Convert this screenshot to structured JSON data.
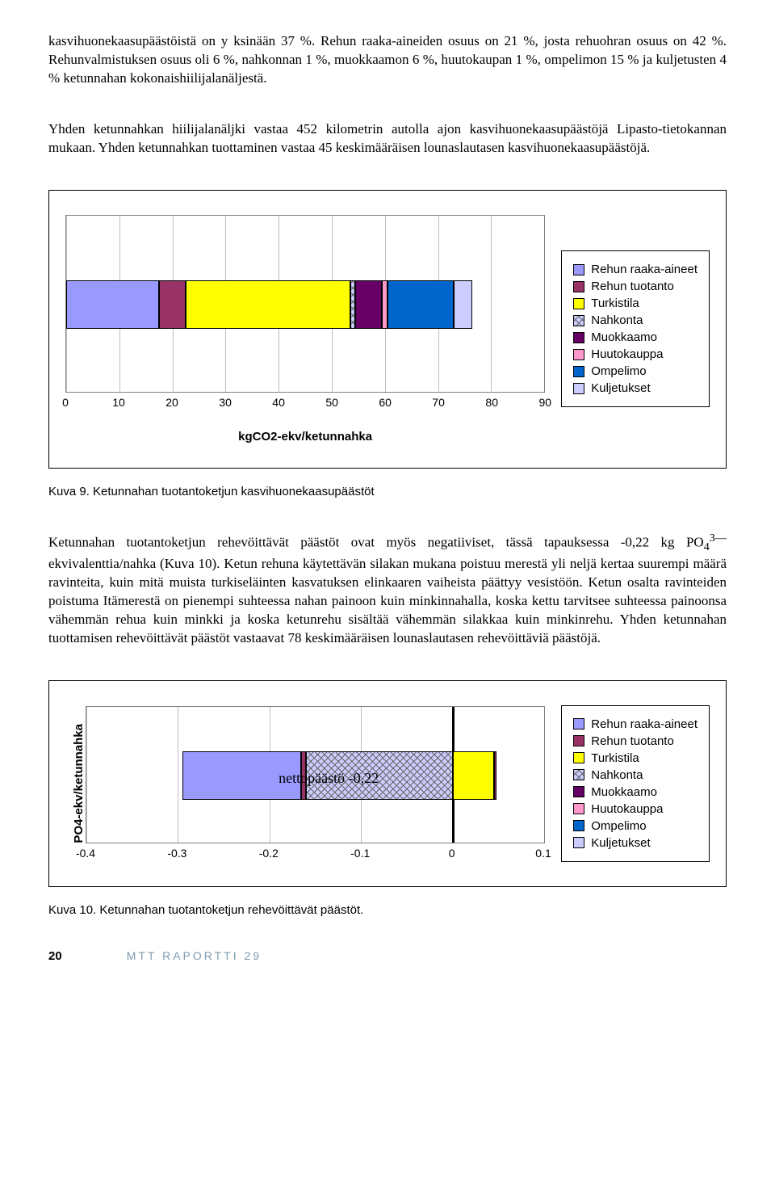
{
  "paragraphs": {
    "p1": "kasvihuonekaasupäästöistä on y ksinään 37 %. Rehun raaka-aineiden osuus on 21 %, josta rehuohran osuus on 42 %. Rehunvalmistuksen osuus oli 6 %, nahkonnan 1 %, muokkaamon 6 %, huutokaupan 1 %, ompelimon 15 % ja kuljetusten 4 % ketunnahan kokonaishiilijalanäljestä.",
    "p2": "Yhden ketunnahkan hiilijalanäljki vastaa 452 kilometrin autolla ajon kasvihuonekaasupäästöjä Lipasto-tietokannan mukaan. Yhden ketunnahkan tuottaminen vastaa 45 keskimääräisen lounaslautasen kasvihuonekaasupäästöjä.",
    "p3a": "Ketunnahan tuotantoketjun rehevöittävät päästöt ovat myös negatiiviset, tässä tapauksessa -0,22 kg PO",
    "p3b": " ekvivalenttia/nahka (Kuva 10). Ketun rehuna käytettävän silakan mukana poistuu merestä yli neljä kertaa suurempi määrä ravinteita, kuin mitä muista turkiseläinten kasvatuksen elinkaaren vaiheista päättyy vesistöön. Ketun osalta ravinteiden poistuma Itämerestä on pienempi suhteessa nahan painoon kuin minkinnahalla, koska kettu tarvitsee suhteessa painoonsa vähemmän rehua kuin minkki ja koska ketunrehu sisältää vähemmän silakkaa kuin minkinrehu. Yhden ketunnahan tuottamisen rehevöittävät päästöt vastaavat 78 keskimääräisen lounaslautasen rehevöittäviä päästöjä.",
    "sub4": "4",
    "sup3": "3—"
  },
  "legend": {
    "items": [
      {
        "label": "Rehun raaka-aineet",
        "color": "#9999ff"
      },
      {
        "label": "Rehun tuotanto",
        "color": "#993366"
      },
      {
        "label": "Turkistila",
        "color": "#ffff00"
      },
      {
        "label": "Nahkonta",
        "color": "#ccccff",
        "hatch": true
      },
      {
        "label": "Muokkaamo",
        "color": "#660066"
      },
      {
        "label": "Huutokauppa",
        "color": "#ff99cc"
      },
      {
        "label": "Ompelimo",
        "color": "#0066cc"
      },
      {
        "label": "Kuljetukset",
        "color": "#ccccff"
      }
    ]
  },
  "chart1": {
    "type": "stacked-bar-horizontal",
    "x_title": "kgCO2-ekv/ketunnahka",
    "xlim": [
      0,
      90
    ],
    "ticks": [
      0,
      10,
      20,
      30,
      40,
      50,
      60,
      70,
      80,
      90
    ],
    "segments": [
      {
        "value": 17.5,
        "color": "#9999ff"
      },
      {
        "value": 5,
        "color": "#993366"
      },
      {
        "value": 31,
        "color": "#ffff00"
      },
      {
        "value": 1,
        "color": "#ccccff",
        "hatch": true
      },
      {
        "value": 5,
        "color": "#660066"
      },
      {
        "value": 1,
        "color": "#ff99cc"
      },
      {
        "value": 12.5,
        "color": "#0066cc"
      },
      {
        "value": 3.5,
        "color": "#ccccff"
      }
    ],
    "background": "#ffffff",
    "grid_color": "#808080"
  },
  "caption1": "Kuva 9. Ketunnahan tuotantoketjun kasvihuonekaasupäästöt",
  "chart2": {
    "type": "stacked-bar-horizontal",
    "y_title": "PO4-ekv/ketunnahka",
    "xlim": [
      -0.4,
      0.1
    ],
    "ticks": [
      -0.4,
      -0.3,
      -0.2,
      -0.1,
      0,
      0.1
    ],
    "segments": [
      {
        "start": -0.295,
        "width": 0.13,
        "color": "#9999ff"
      },
      {
        "start": -0.165,
        "width": 0.005,
        "color": "#993366"
      },
      {
        "start": -0.16,
        "width": 0.16,
        "color": "#ccccff",
        "hatch": true
      },
      {
        "start": 0.0,
        "width": 0.045,
        "color": "#ffff00"
      },
      {
        "start": 0.045,
        "width": 0.003,
        "color": "#993366"
      }
    ],
    "annotation": "nettopäästö -0,22",
    "background": "#ffffff",
    "grid_color": "#808080"
  },
  "caption2": "Kuva 10. Ketunnahan tuotantoketjun rehevöittävät päästöt.",
  "footer": {
    "page": "20",
    "text": "MTT RAPORTTI 29"
  }
}
